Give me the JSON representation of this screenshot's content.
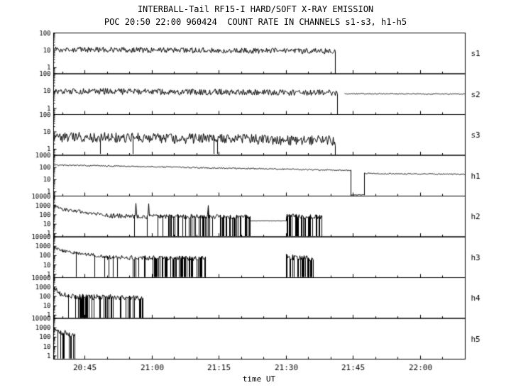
{
  "chart_data": {
    "type": "line",
    "title": "INTERBALL-Tail RF15-I HARD/SOFT X-RAY EMISSION",
    "subtitle": "POC 20:50 22:00 960424  COUNT RATE IN CHANNELS s1-s3, h1-h5",
    "description": "Eight stacked log-scale count-rate time-series panels (channels s1-s3 soft, h1-h5 hard) versus universal time",
    "colors": {
      "trace": "#000000",
      "background": "#ffffff",
      "frame": "#000000"
    },
    "x_axis": {
      "label": "time UT",
      "span_min": 92,
      "major_ticks": [
        {
          "min": 7,
          "label": "20:45"
        },
        {
          "min": 22,
          "label": "21:00"
        },
        {
          "min": 37,
          "label": "21:15"
        },
        {
          "min": 52,
          "label": "21:30"
        },
        {
          "min": 67,
          "label": "21:45"
        },
        {
          "min": 82,
          "label": "22:00"
        }
      ],
      "minor_ticks_min": [
        2,
        12,
        17,
        27,
        32,
        42,
        47,
        57,
        62,
        72,
        77,
        87
      ]
    },
    "panels": [
      {
        "name": "s1",
        "ymax": 2,
        "yticks": [
          {
            "exp": 2,
            "label": "100"
          },
          {
            "exp": 1,
            "label": "10"
          },
          {
            "exp": 0,
            "label": "1"
          }
        ],
        "segments": [
          {
            "t0": 0,
            "t1": 63,
            "log0": 1.05,
            "log1": 0.95,
            "noise": 0.16,
            "dropout": 0,
            "end_drop": true
          }
        ]
      },
      {
        "name": "s2",
        "ymax": 2,
        "yticks": [
          {
            "exp": 2,
            "label": "100"
          },
          {
            "exp": 1,
            "label": "10"
          },
          {
            "exp": 0,
            "label": "1"
          }
        ],
        "segments": [
          {
            "t0": 0,
            "t1": 63.5,
            "log0": 1.0,
            "log1": 0.9,
            "noise": 0.18,
            "dropout": 0,
            "end_drop": true
          },
          {
            "t0": 65,
            "t1": 92,
            "log0": 0.85,
            "log1": 0.83,
            "noise": 0.03,
            "dropout": 0
          }
        ]
      },
      {
        "name": "s3",
        "ymax": 2,
        "yticks": [
          {
            "exp": 2,
            "label": "100"
          },
          {
            "exp": 1,
            "label": "10"
          },
          {
            "exp": 0,
            "label": "1"
          }
        ],
        "segments": [
          {
            "t0": 0,
            "t1": 63,
            "log0": 0.72,
            "log1": 0.5,
            "noise": 0.3,
            "dropout": 0.01,
            "end_drop": true
          }
        ]
      },
      {
        "name": "h1",
        "ymax": 3,
        "yticks": [
          {
            "exp": 3,
            "label": "1000"
          },
          {
            "exp": 2,
            "label": "100"
          },
          {
            "exp": 1,
            "label": "10"
          },
          {
            "exp": 0,
            "label": "1"
          }
        ],
        "segments": [
          {
            "t0": 0,
            "t1": 66.5,
            "log0": 2.2,
            "log1": 1.76,
            "noise": 0.05,
            "dropout": 0,
            "end_drop": true
          },
          {
            "t0": 66.5,
            "t1": 69.5,
            "log0": -0.25,
            "log1": -0.25,
            "noise": 0.02,
            "dropout": 0
          },
          {
            "t0": 69.5,
            "t1": 92,
            "log0": 1.5,
            "log1": 1.44,
            "noise": 0.05,
            "dropout": 0
          }
        ]
      },
      {
        "name": "h2",
        "ymax": 4,
        "yticks": [
          {
            "exp": 4,
            "label": "10000"
          },
          {
            "exp": 3,
            "label": "1000"
          },
          {
            "exp": 2,
            "label": "100"
          },
          {
            "exp": 1,
            "label": "10"
          },
          {
            "exp": 0,
            "label": "1"
          }
        ],
        "segments": [
          {
            "t0": 0,
            "t1": 2,
            "log0": 3.05,
            "log1": 2.6,
            "noise": 0.15,
            "dropout": 0
          },
          {
            "t0": 2,
            "t1": 12,
            "log0": 2.6,
            "log1": 1.95,
            "noise": 0.18,
            "dropout": 0
          },
          {
            "t0": 12,
            "t1": 24,
            "log0": 1.9,
            "log1": 1.8,
            "noise": 0.25,
            "dropout": 0.02,
            "spike": 0.02
          },
          {
            "t0": 24,
            "t1": 44,
            "log0": 1.85,
            "log1": 1.75,
            "noise": 0.25,
            "dropout": 0.45,
            "spike": 0.02
          },
          {
            "t0": 44,
            "t1": 52,
            "log0": 1.35,
            "log1": 1.35,
            "noise": 0.02,
            "dropout": 0
          },
          {
            "t0": 52,
            "t1": 60,
            "log0": 1.85,
            "log1": 1.75,
            "noise": 0.25,
            "dropout": 0.5,
            "end_drop": true
          }
        ]
      },
      {
        "name": "h3",
        "ymax": 4,
        "yticks": [
          {
            "exp": 4,
            "label": "10000"
          },
          {
            "exp": 3,
            "label": "1000"
          },
          {
            "exp": 2,
            "label": "100"
          },
          {
            "exp": 1,
            "label": "10"
          },
          {
            "exp": 0,
            "label": "1"
          }
        ],
        "segments": [
          {
            "t0": 0,
            "t1": 2,
            "log0": 2.9,
            "log1": 2.5,
            "noise": 0.15,
            "dropout": 0
          },
          {
            "t0": 2,
            "t1": 12,
            "log0": 2.5,
            "log1": 1.85,
            "noise": 0.18,
            "dropout": 0.02
          },
          {
            "t0": 12,
            "t1": 22,
            "log0": 1.8,
            "log1": 1.72,
            "noise": 0.25,
            "dropout": 0.15
          },
          {
            "t0": 22,
            "t1": 34,
            "log0": 1.75,
            "log1": 1.65,
            "noise": 0.25,
            "dropout": 0.55,
            "end_drop": true
          },
          {
            "t0": 52,
            "t1": 58,
            "log0": 1.85,
            "log1": 1.7,
            "noise": 0.3,
            "dropout": 0.5,
            "start_drop": true,
            "end_drop": true
          }
        ]
      },
      {
        "name": "h4",
        "ymax": 4,
        "yticks": [
          {
            "exp": 4,
            "label": "10000"
          },
          {
            "exp": 3,
            "label": "1000"
          },
          {
            "exp": 2,
            "label": "100"
          },
          {
            "exp": 1,
            "label": "10"
          },
          {
            "exp": 0,
            "label": "1"
          }
        ],
        "segments": [
          {
            "t0": 0,
            "t1": 1.5,
            "log0": 3.0,
            "log1": 2.3,
            "noise": 0.2,
            "dropout": 0
          },
          {
            "t0": 1.5,
            "t1": 5,
            "log0": 2.25,
            "log1": 1.95,
            "noise": 0.25,
            "dropout": 0.1
          },
          {
            "t0": 5,
            "t1": 9,
            "log0": 1.95,
            "log1": 1.9,
            "noise": 0.3,
            "dropout": 0.5
          },
          {
            "t0": 9,
            "t1": 17,
            "log0": 1.98,
            "log1": 1.88,
            "noise": 0.3,
            "dropout": 0.25
          },
          {
            "t0": 17,
            "t1": 20,
            "log0": 1.9,
            "log1": 1.8,
            "noise": 0.3,
            "dropout": 0.5,
            "end_drop": true
          }
        ]
      },
      {
        "name": "h5",
        "ymax": 4,
        "yticks": [
          {
            "exp": 4,
            "label": "10000"
          },
          {
            "exp": 3,
            "label": "1000"
          },
          {
            "exp": 2,
            "label": "100"
          },
          {
            "exp": 1,
            "label": "10"
          },
          {
            "exp": 0,
            "label": "1"
          }
        ],
        "segments": [
          {
            "t0": 0,
            "t1": 1,
            "log0": 3.0,
            "log1": 2.6,
            "noise": 0.2,
            "dropout": 0
          },
          {
            "t0": 1,
            "t1": 4.8,
            "log0": 2.6,
            "log1": 2.2,
            "noise": 0.3,
            "dropout": 0.35,
            "end_drop": true
          }
        ]
      }
    ]
  }
}
